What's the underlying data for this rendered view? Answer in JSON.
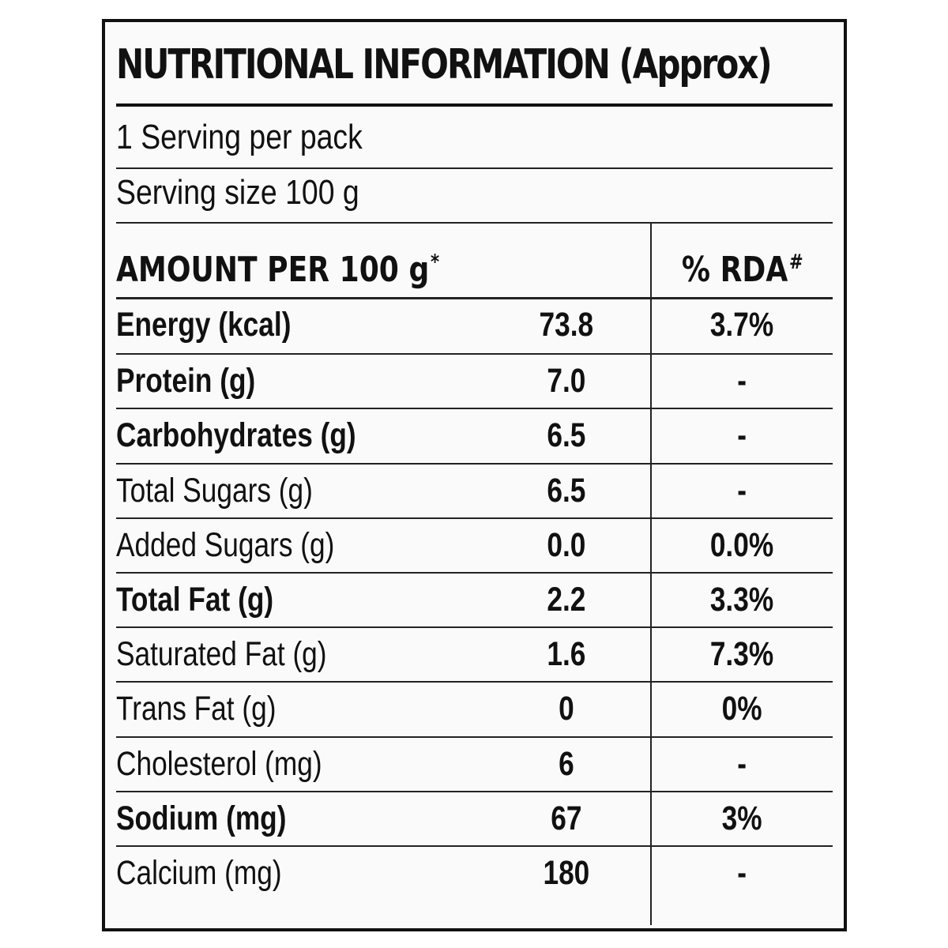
{
  "title": "NUTRITIONAL INFORMATION (Approx)",
  "servings_per_pack": "1 Serving per pack",
  "serving_size": "Serving size 100 g",
  "header": {
    "amount_label": "AMOUNT PER 100 g",
    "amount_mark": "*",
    "rda_label": "% RDA",
    "rda_mark": "#"
  },
  "rows": [
    {
      "name": "Energy (kcal)",
      "value": "73.8",
      "rda": "3.7%",
      "bold": true
    },
    {
      "name": "Protein (g)",
      "value": "7.0",
      "rda": "-",
      "bold": true
    },
    {
      "name": "Carbohydrates (g)",
      "value": "6.5",
      "rda": "-",
      "bold": true
    },
    {
      "name": "Total Sugars (g)",
      "value": "6.5",
      "rda": "-",
      "bold": false
    },
    {
      "name": "Added Sugars (g)",
      "value": "0.0",
      "rda": "0.0%",
      "bold": false
    },
    {
      "name": "Total Fat (g)",
      "value": "2.2",
      "rda": "3.3%",
      "bold": true
    },
    {
      "name": "Saturated Fat (g)",
      "value": "1.6",
      "rda": "7.3%",
      "bold": false
    },
    {
      "name": "Trans Fat (g)",
      "value": "0",
      "rda": "0%",
      "bold": false
    },
    {
      "name": "Cholesterol (mg)",
      "value": "6",
      "rda": "-",
      "bold": false
    },
    {
      "name": "Sodium (mg)",
      "value": "67",
      "rda": "3%",
      "bold": true
    },
    {
      "name": "Calcium (mg)",
      "value": "180",
      "rda": "-",
      "bold": false
    }
  ]
}
